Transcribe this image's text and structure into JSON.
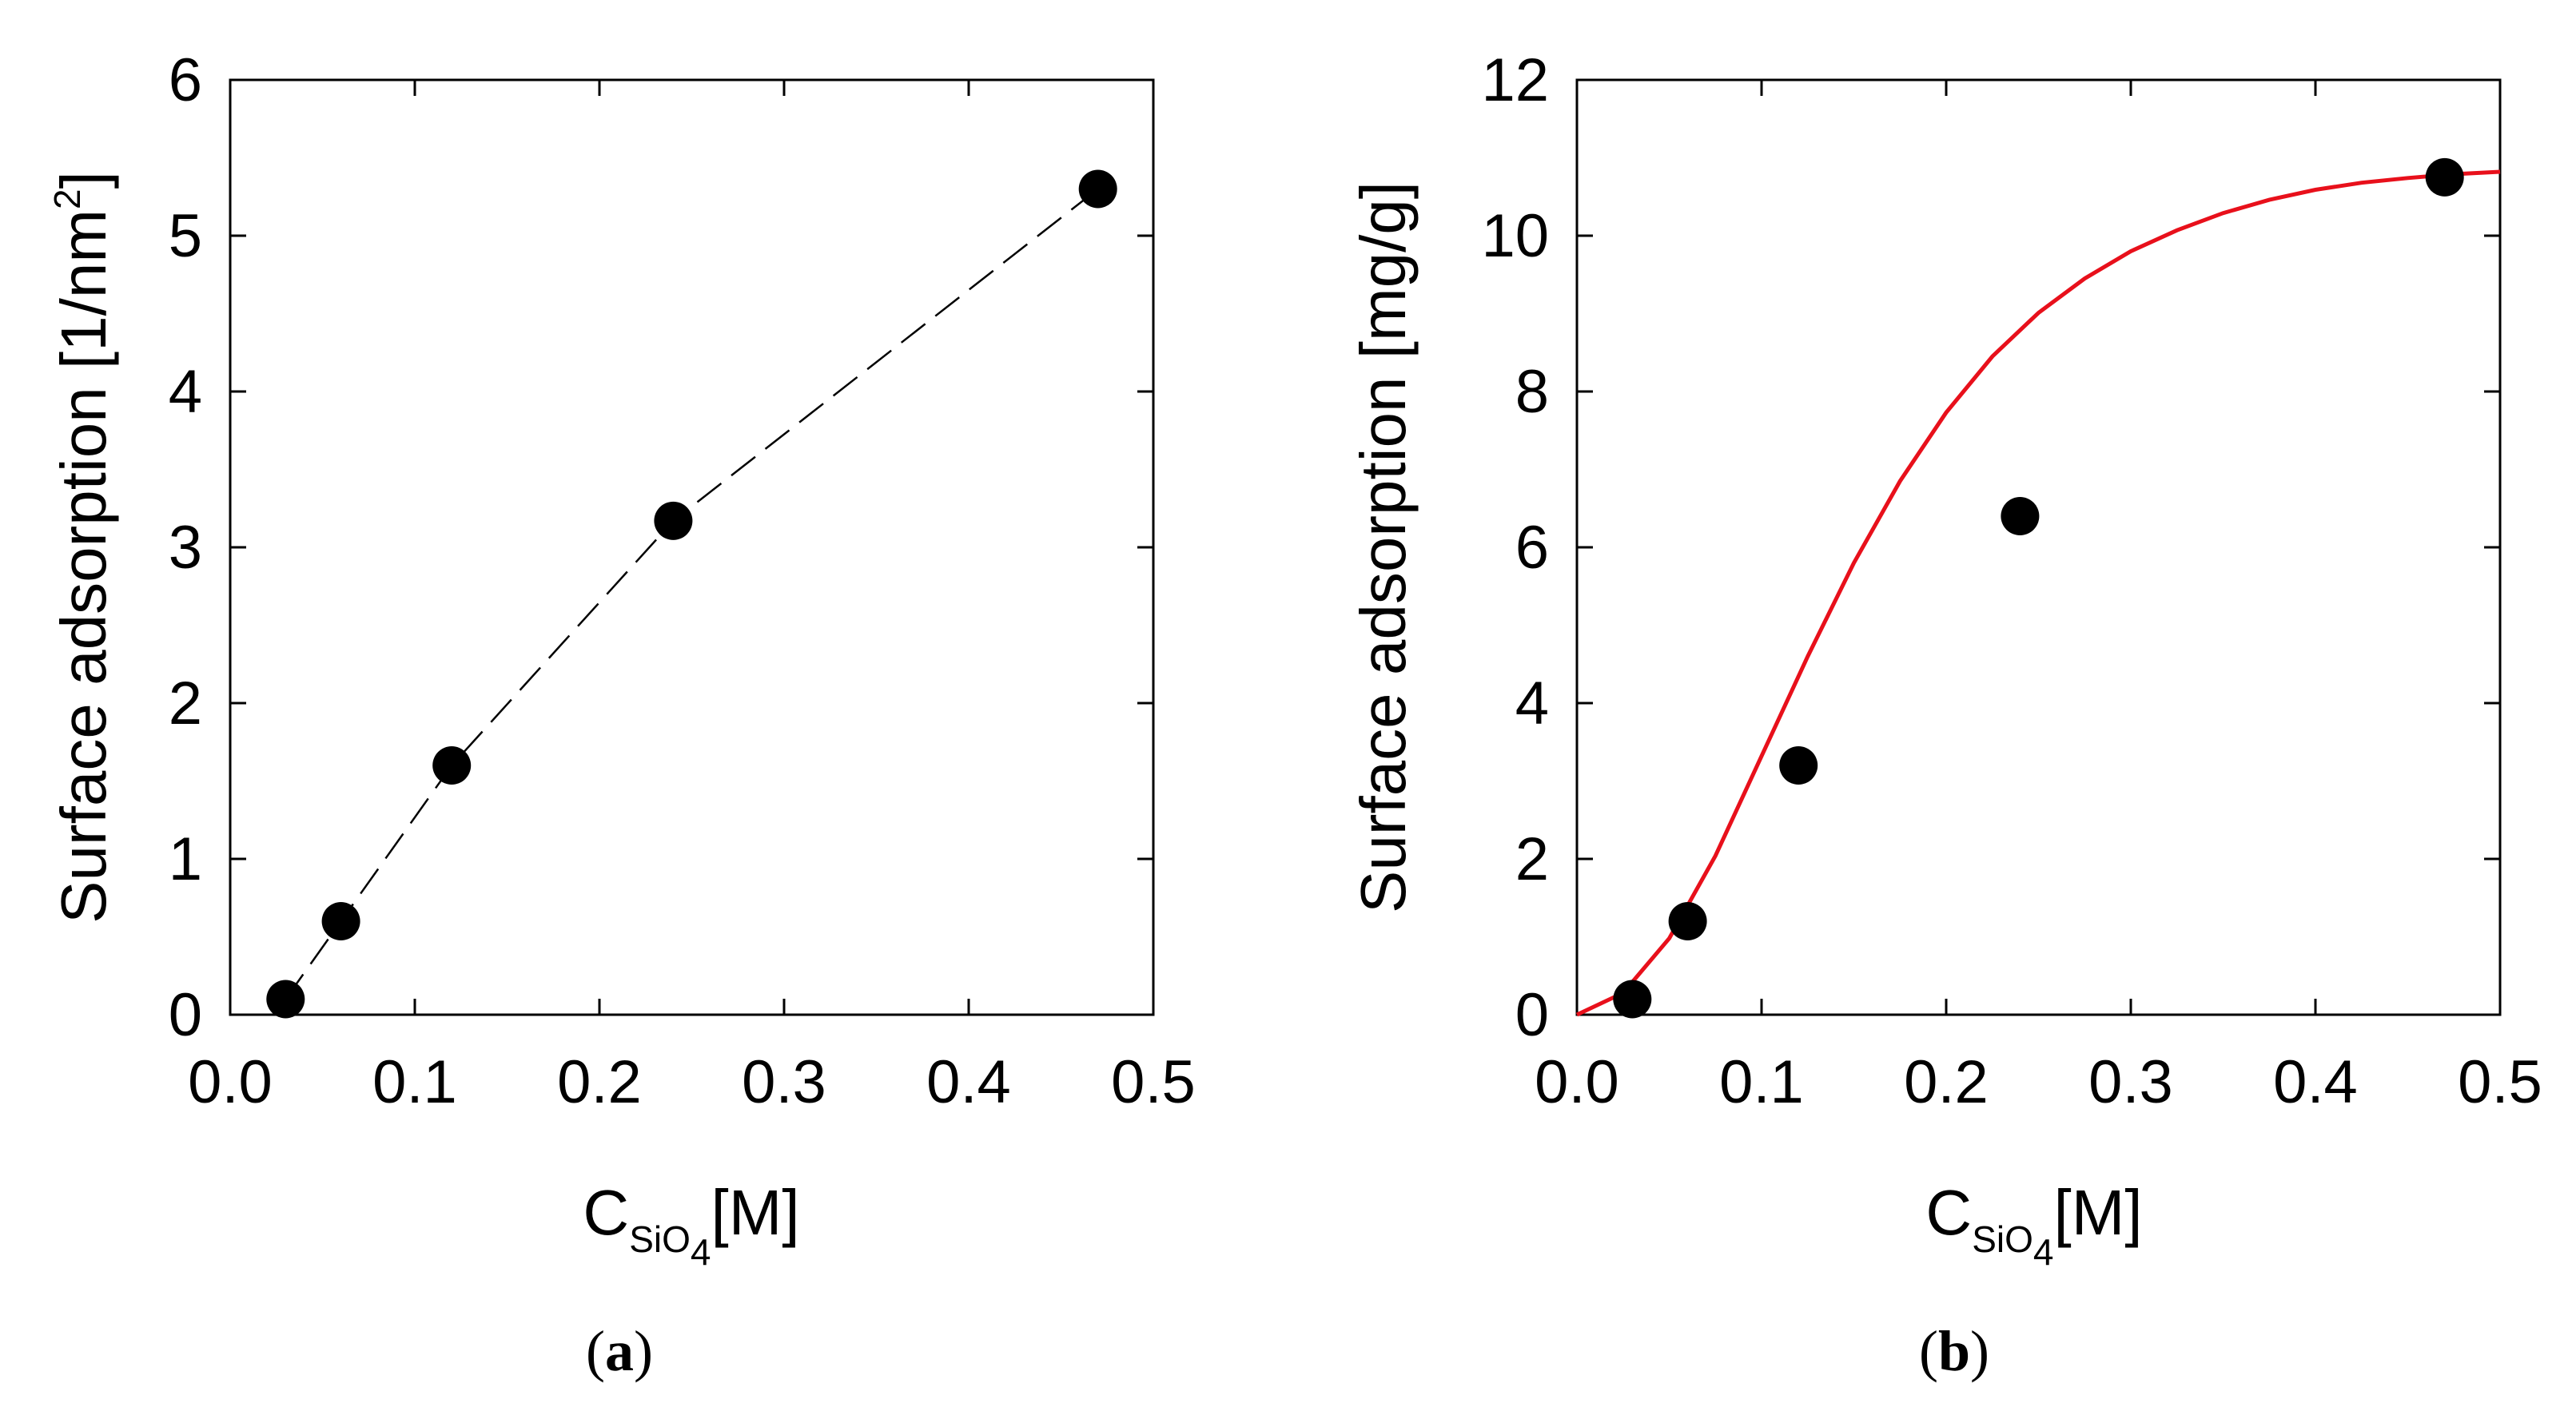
{
  "chart_data": [
    {
      "type": "scatter",
      "panel_label": "a",
      "xlabel": {
        "main": "C",
        "subscript": "SiO",
        "subsub": "4",
        "unit": "[M]"
      },
      "ylabel": {
        "text": "Surface adsorption [1/nm",
        "sup": "2",
        "tail": "]"
      },
      "xlim": [
        0.0,
        0.5
      ],
      "ylim": [
        0,
        6
      ],
      "xticks": [
        "0.0",
        "0.1",
        "0.2",
        "0.3",
        "0.4",
        "0.5"
      ],
      "yticks": [
        "0",
        "1",
        "2",
        "3",
        "4",
        "5",
        "6"
      ],
      "series": [
        {
          "x": [
            0.03,
            0.06,
            0.12,
            0.24,
            0.47
          ],
          "y": [
            0.1,
            0.6,
            1.6,
            3.17,
            5.3
          ],
          "marker": "filled-circle",
          "line": "dashed",
          "color": "#000000"
        }
      ]
    },
    {
      "type": "scatter",
      "panel_label": "b",
      "xlabel": {
        "main": "C",
        "subscript": "SiO",
        "subsub": "4",
        "unit": "[M]"
      },
      "ylabel": {
        "text": "Surface adsorption [mg/g]",
        "sup": "",
        "tail": ""
      },
      "xlim": [
        0.0,
        0.5
      ],
      "ylim": [
        0,
        12
      ],
      "xticks": [
        "0.0",
        "0.1",
        "0.2",
        "0.3",
        "0.4",
        "0.5"
      ],
      "yticks": [
        "0",
        "2",
        "4",
        "6",
        "8",
        "10",
        "12"
      ],
      "series": [
        {
          "x": [
            0.03,
            0.06,
            0.12,
            0.24,
            0.47
          ],
          "y": [
            0.2,
            1.2,
            3.2,
            6.4,
            10.75
          ],
          "marker": "filled-circle",
          "line": "none",
          "color": "#000000"
        },
        {
          "x": [
            0.0,
            0.025,
            0.05,
            0.075,
            0.1,
            0.125,
            0.15,
            0.175,
            0.2,
            0.225,
            0.25,
            0.275,
            0.3,
            0.325,
            0.35,
            0.375,
            0.4,
            0.425,
            0.45,
            0.475,
            0.5
          ],
          "y": [
            0.0,
            0.28,
            0.98,
            2.04,
            3.32,
            4.6,
            5.8,
            6.85,
            7.73,
            8.45,
            9.01,
            9.45,
            9.8,
            10.07,
            10.29,
            10.46,
            10.59,
            10.68,
            10.74,
            10.79,
            10.82
          ],
          "marker": "none",
          "line": "solid",
          "color": "#e8101b"
        }
      ]
    }
  ]
}
